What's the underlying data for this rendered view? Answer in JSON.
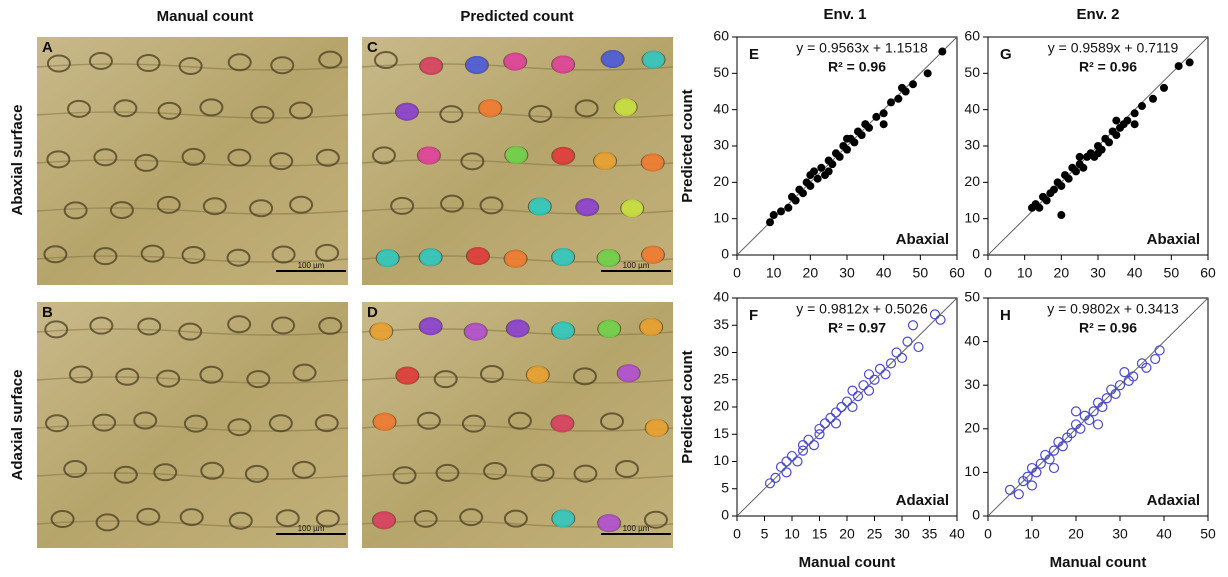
{
  "figure": {
    "col_headers": [
      "Manual count",
      "Predicted count",
      "Env. 1",
      "Env. 2"
    ],
    "row_labels": [
      "Abaxial surface",
      "Adaxial surface"
    ],
    "panels": [
      "A",
      "C",
      "B",
      "D"
    ],
    "scale_bar": "100 µm"
  },
  "chart_data": [
    {
      "type": "scatter",
      "panel": "E",
      "equation": "y = 0.9563x + 1.1518",
      "r2": "R² = 0.96",
      "corner_label": "Abaxial",
      "y_label": "Predicted count",
      "color": "#000000",
      "marker": "filled",
      "xlim": [
        0,
        60
      ],
      "ylim": [
        0,
        60
      ],
      "xticks": [
        0,
        10,
        20,
        30,
        40,
        50,
        60
      ],
      "yticks": [
        0,
        10,
        20,
        30,
        40,
        50,
        60
      ],
      "x": [
        9,
        10,
        12,
        14,
        15,
        16,
        17,
        18,
        19,
        20,
        21,
        22,
        23,
        24,
        25,
        26,
        27,
        28,
        29,
        30,
        31,
        32,
        33,
        34,
        35,
        36,
        38,
        40,
        42,
        44,
        46,
        48,
        52,
        56,
        20,
        25,
        30,
        35,
        40,
        45
      ],
      "values": [
        9,
        11,
        12,
        13,
        16,
        15,
        18,
        17,
        20,
        19,
        23,
        21,
        24,
        22,
        26,
        25,
        28,
        27,
        30,
        29,
        32,
        31,
        34,
        33,
        36,
        35,
        38,
        39,
        42,
        43,
        45,
        47,
        50,
        56,
        22,
        23,
        32,
        36,
        36,
        46
      ]
    },
    {
      "type": "scatter",
      "panel": "G",
      "equation": "y = 0.9589x + 0.7119",
      "r2": "R² = 0.96",
      "corner_label": "Abaxial",
      "color": "#000000",
      "marker": "filled",
      "xlim": [
        0,
        60
      ],
      "ylim": [
        0,
        60
      ],
      "xticks": [
        0,
        10,
        20,
        30,
        40,
        50,
        60
      ],
      "yticks": [
        0,
        10,
        20,
        30,
        40,
        50,
        60
      ],
      "x": [
        12,
        13,
        14,
        15,
        16,
        17,
        18,
        19,
        20,
        21,
        22,
        23,
        24,
        25,
        26,
        27,
        28,
        29,
        30,
        31,
        32,
        33,
        34,
        35,
        36,
        37,
        38,
        40,
        42,
        45,
        48,
        52,
        55,
        20,
        25,
        30,
        35,
        40
      ],
      "values": [
        13,
        14,
        13,
        16,
        15,
        17,
        18,
        20,
        19,
        22,
        21,
        24,
        23,
        25,
        24,
        27,
        28,
        27,
        30,
        29,
        32,
        31,
        34,
        33,
        35,
        36,
        37,
        39,
        41,
        43,
        46,
        52,
        53,
        11,
        27,
        28,
        37,
        36
      ]
    },
    {
      "type": "scatter",
      "panel": "F",
      "equation": "y = 0.9812x + 0.5026",
      "r2": "R² = 0.97",
      "corner_label": "Adaxial",
      "x_label": "Manual count",
      "y_label": "Predicted count",
      "color": "#4a4ad0",
      "marker": "open",
      "xlim": [
        0,
        40
      ],
      "ylim": [
        0,
        40
      ],
      "xticks": [
        0,
        5,
        10,
        15,
        20,
        25,
        30,
        35,
        40
      ],
      "yticks": [
        0,
        5,
        10,
        15,
        20,
        25,
        30,
        35,
        40
      ],
      "x": [
        6,
        7,
        8,
        9,
        9,
        10,
        11,
        12,
        12,
        13,
        14,
        15,
        15,
        16,
        17,
        18,
        18,
        19,
        20,
        21,
        21,
        22,
        23,
        24,
        24,
        25,
        26,
        27,
        28,
        29,
        30,
        31,
        32,
        33,
        36,
        37
      ],
      "values": [
        6,
        7,
        9,
        8,
        10,
        11,
        10,
        13,
        12,
        14,
        13,
        16,
        15,
        17,
        18,
        17,
        19,
        20,
        21,
        20,
        23,
        22,
        24,
        23,
        26,
        25,
        27,
        26,
        28,
        30,
        29,
        32,
        35,
        31,
        37,
        36
      ]
    },
    {
      "type": "scatter",
      "panel": "H",
      "equation": "y = 0.9802x + 0.3413",
      "r2": "R² = 0.96",
      "corner_label": "Adaxial",
      "x_label": "Manual count",
      "color": "#4a4ad0",
      "marker": "open",
      "xlim": [
        0,
        50
      ],
      "ylim": [
        0,
        50
      ],
      "xticks": [
        0,
        10,
        20,
        30,
        40,
        50
      ],
      "yticks": [
        0,
        10,
        20,
        30,
        40,
        50
      ],
      "x": [
        5,
        7,
        8,
        9,
        10,
        10,
        11,
        12,
        13,
        14,
        15,
        16,
        17,
        18,
        19,
        20,
        21,
        22,
        23,
        24,
        25,
        26,
        27,
        28,
        29,
        30,
        31,
        32,
        33,
        35,
        36,
        38,
        39,
        15,
        20,
        25
      ],
      "values": [
        6,
        5,
        8,
        9,
        7,
        11,
        10,
        12,
        14,
        13,
        15,
        17,
        16,
        18,
        19,
        21,
        20,
        23,
        22,
        24,
        26,
        25,
        27,
        29,
        28,
        30,
        33,
        31,
        32,
        35,
        34,
        36,
        38,
        11,
        24,
        21
      ]
    }
  ]
}
